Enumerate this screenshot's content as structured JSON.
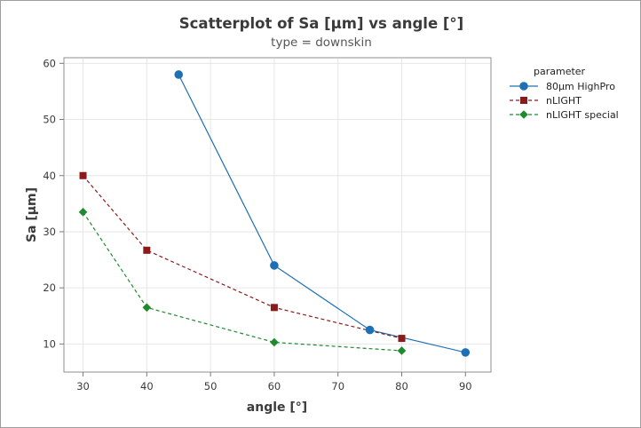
{
  "chart_data": {
    "type": "line",
    "title": "Scatterplot of Sa [µm] vs angle [°]",
    "subtitle": "type = downskin",
    "xlabel": "angle [°]",
    "ylabel": "Sa [µm]",
    "xlim": [
      27,
      94
    ],
    "ylim": [
      5,
      61
    ],
    "x_ticks": [
      30,
      40,
      50,
      60,
      70,
      80,
      90
    ],
    "y_ticks": [
      10,
      20,
      30,
      40,
      50,
      60
    ],
    "grid": true,
    "legend": {
      "title": "parameter",
      "placement": "right"
    },
    "series": [
      {
        "name": "80µm HighPro",
        "color": "#1f6fb4",
        "marker": "circle",
        "line_style": "solid",
        "points": [
          [
            45,
            58
          ],
          [
            60,
            24
          ],
          [
            75,
            12.5
          ],
          [
            90,
            8.5
          ]
        ]
      },
      {
        "name": "nLIGHT",
        "color": "#8b1a1a",
        "marker": "square",
        "line_style": "dashed",
        "points": [
          [
            30,
            40
          ],
          [
            40,
            26.7
          ],
          [
            60,
            16.5
          ],
          [
            80,
            11
          ]
        ]
      },
      {
        "name": "nLIGHT special",
        "color": "#1e8a2e",
        "marker": "diamond",
        "line_style": "dashed",
        "points": [
          [
            30,
            33.5
          ],
          [
            40,
            16.5
          ],
          [
            60,
            10.3
          ],
          [
            80,
            8.8
          ]
        ]
      }
    ]
  }
}
